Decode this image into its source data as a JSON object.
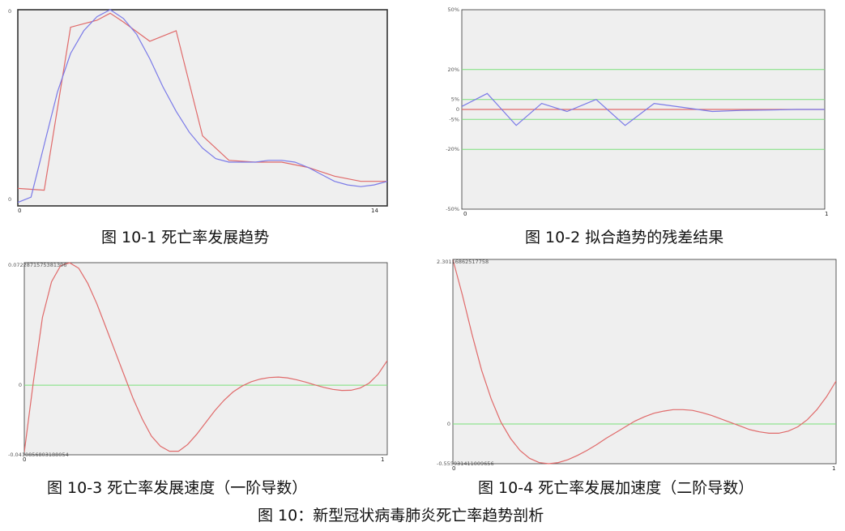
{
  "captions": {
    "c1": "图 10-1  死亡率发展趋势",
    "c2": "图 10-2 拟合趋势的残差结果",
    "c3": "图 10-3  死亡率发展速度（一阶导数）",
    "c4": "图 10-4  死亡率发展加速度（二阶导数）",
    "main": "图 10：新型冠状病毒肺炎死亡率趋势剖析"
  },
  "colors": {
    "plot_bg": "#efefef",
    "red": "#e06a6a",
    "blue": "#7a7ae8",
    "green": "#7ae07a",
    "frame": "#333333"
  },
  "chart_data": [
    {
      "type": "line",
      "x_ticks": [
        "0",
        "14"
      ],
      "y_ticks": [
        "0",
        "0"
      ],
      "xlim": [
        0,
        14
      ],
      "series": [
        {
          "color": "#e06a6a",
          "x": [
            0,
            1,
            2,
            3,
            3.5,
            4,
            5,
            6,
            7,
            8,
            9,
            10,
            11,
            12,
            13,
            14
          ],
          "y": [
            0,
            -0.01,
            0.92,
            0.96,
            1.0,
            0.95,
            0.84,
            0.9,
            0.3,
            0.16,
            0.15,
            0.15,
            0.12,
            0.07,
            0.04,
            0.04
          ]
        },
        {
          "color": "#7a7ae8",
          "x": [
            0,
            0.5,
            1,
            1.5,
            2,
            2.5,
            3,
            3.5,
            4,
            4.5,
            5,
            5.5,
            6,
            6.5,
            7,
            7.5,
            8,
            8.5,
            9,
            9.5,
            10,
            10.5,
            11,
            11.5,
            12,
            12.5,
            13,
            13.5,
            14
          ],
          "y": [
            -0.08,
            -0.05,
            0.25,
            0.55,
            0.77,
            0.9,
            0.98,
            1.02,
            0.97,
            0.88,
            0.74,
            0.58,
            0.44,
            0.32,
            0.23,
            0.17,
            0.15,
            0.15,
            0.15,
            0.16,
            0.16,
            0.15,
            0.12,
            0.08,
            0.04,
            0.02,
            0.01,
            0.02,
            0.04
          ]
        }
      ]
    },
    {
      "type": "line",
      "x_ticks": [
        "0",
        "1"
      ],
      "y_ticks": [
        "50%",
        "20%",
        "5%",
        "0",
        "-5%",
        "-20%",
        "-50%"
      ],
      "y_tick_values": [
        50,
        20,
        5,
        0,
        -5,
        -20,
        -50
      ],
      "ylim": [
        -50,
        50
      ],
      "xlim": [
        0,
        1
      ],
      "reference_lines": [
        20,
        5,
        -5,
        -20
      ],
      "series": [
        {
          "color": "#e06a6a",
          "x": [
            0,
            1
          ],
          "y": [
            0,
            0
          ]
        },
        {
          "color": "#7a7ae8",
          "x": [
            0,
            0.07,
            0.15,
            0.22,
            0.29,
            0.37,
            0.45,
            0.53,
            0.61,
            0.69,
            0.77,
            0.85,
            0.92,
            1
          ],
          "y": [
            1.5,
            8,
            -8,
            3,
            -1,
            5,
            -8,
            3,
            1,
            -1,
            -0.5,
            -0.3,
            0,
            0
          ]
        }
      ]
    },
    {
      "type": "line",
      "x_ticks": [
        "0",
        "1"
      ],
      "y_ticks": [
        "0.0722871575381396",
        "0",
        "-0.0410856803188054"
      ],
      "y_tick_values": [
        0.0722871575381396,
        0,
        -0.0410856803188054
      ],
      "ylim": [
        -0.0410856803188054,
        0.0722871575381396
      ],
      "xlim": [
        0,
        1
      ],
      "reference_lines": [
        0
      ],
      "series": [
        {
          "color": "#e06a6a",
          "x": [
            0,
            0.025,
            0.05,
            0.075,
            0.1,
            0.125,
            0.15,
            0.175,
            0.2,
            0.225,
            0.25,
            0.275,
            0.3,
            0.325,
            0.35,
            0.375,
            0.4,
            0.425,
            0.45,
            0.475,
            0.5,
            0.525,
            0.55,
            0.575,
            0.6,
            0.625,
            0.65,
            0.675,
            0.7,
            0.725,
            0.75,
            0.775,
            0.8,
            0.825,
            0.85,
            0.875,
            0.9,
            0.925,
            0.95,
            0.975,
            1
          ],
          "y": [
            -0.0395,
            0.002,
            0.04,
            0.061,
            0.0705,
            0.0722,
            0.069,
            0.06,
            0.048,
            0.034,
            0.02,
            0.006,
            -0.008,
            -0.02,
            -0.03,
            -0.036,
            -0.039,
            -0.039,
            -0.035,
            -0.029,
            -0.022,
            -0.015,
            -0.009,
            -0.004,
            -0.0005,
            0.002,
            0.0036,
            0.0045,
            0.0048,
            0.0043,
            0.0032,
            0.0018,
            0.0002,
            -0.0013,
            -0.0025,
            -0.0031,
            -0.003,
            -0.0017,
            0.0012,
            0.0065,
            0.0145
          ]
        }
      ]
    },
    {
      "type": "line",
      "x_ticks": [
        "0",
        "1"
      ],
      "y_ticks": [
        "2.30116862517758",
        "0",
        "-0.555931411009656"
      ],
      "y_tick_values": [
        2.30116862517758,
        0,
        -0.555931411009656
      ],
      "ylim": [
        -0.555931411009656,
        2.30116862517758
      ],
      "xlim": [
        0,
        1
      ],
      "reference_lines": [
        0
      ],
      "series": [
        {
          "color": "#e06a6a",
          "x": [
            0,
            0.025,
            0.05,
            0.075,
            0.1,
            0.125,
            0.15,
            0.175,
            0.2,
            0.225,
            0.25,
            0.275,
            0.3,
            0.325,
            0.35,
            0.375,
            0.4,
            0.425,
            0.45,
            0.475,
            0.5,
            0.525,
            0.55,
            0.575,
            0.6,
            0.625,
            0.65,
            0.675,
            0.7,
            0.725,
            0.75,
            0.775,
            0.8,
            0.825,
            0.85,
            0.875,
            0.9,
            0.925,
            0.95,
            0.975,
            1
          ],
          "y": [
            2.3,
            1.8,
            1.25,
            0.75,
            0.35,
            0.03,
            -0.2,
            -0.37,
            -0.48,
            -0.54,
            -0.556,
            -0.54,
            -0.5,
            -0.44,
            -0.37,
            -0.29,
            -0.2,
            -0.12,
            -0.04,
            0.04,
            0.1,
            0.15,
            0.18,
            0.2,
            0.2,
            0.19,
            0.16,
            0.12,
            0.07,
            0.02,
            -0.03,
            -0.08,
            -0.11,
            -0.13,
            -0.13,
            -0.1,
            -0.04,
            0.06,
            0.2,
            0.38,
            0.6
          ]
        }
      ]
    }
  ]
}
